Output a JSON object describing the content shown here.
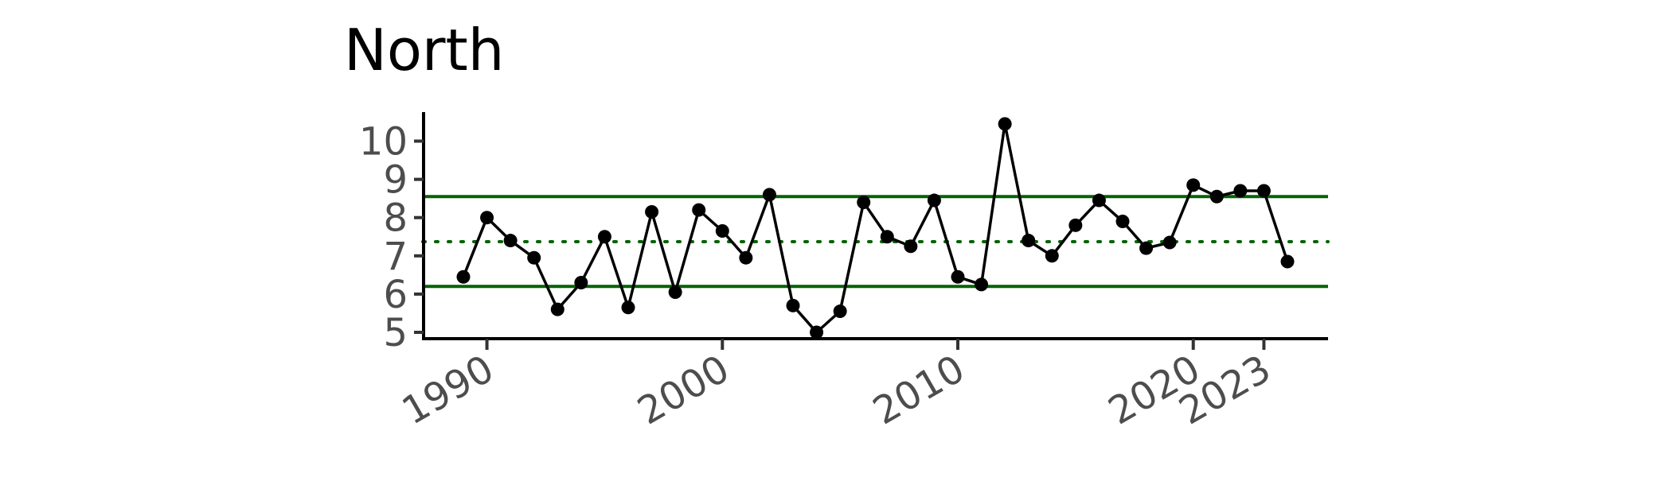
{
  "chart_data": {
    "type": "line",
    "title": "North",
    "xlabel": "",
    "ylabel": "",
    "x": [
      1989,
      1990,
      1991,
      1992,
      1993,
      1994,
      1995,
      1996,
      1997,
      1998,
      1999,
      2000,
      2001,
      2002,
      2003,
      2004,
      2005,
      2006,
      2007,
      2008,
      2009,
      2010,
      2011,
      2012,
      2013,
      2014,
      2015,
      2016,
      2017,
      2018,
      2019,
      2020,
      2021,
      2022,
      2023,
      2024
    ],
    "series": [
      {
        "values": [
          6.45,
          8.0,
          7.4,
          6.95,
          5.6,
          6.3,
          7.5,
          5.65,
          8.15,
          6.05,
          8.2,
          7.65,
          6.95,
          8.6,
          5.7,
          5.0,
          5.55,
          8.4,
          7.5,
          7.25,
          8.45,
          6.45,
          6.25,
          10.45,
          7.4,
          7.0,
          7.8,
          8.45,
          7.9,
          7.2,
          7.35,
          8.85,
          8.55,
          8.7,
          8.7,
          6.85
        ]
      }
    ],
    "reference_lines": {
      "center": 7.37,
      "upper": 8.55,
      "lower": 6.2
    },
    "xlim": [
      1989.0,
      2024.0
    ],
    "ylim": [
      5,
      10
    ],
    "x_ticks": [
      1990,
      2000,
      2010,
      2020,
      2023
    ],
    "y_ticks": [
      5,
      6,
      7,
      8,
      9,
      10
    ],
    "x_tick_labels": [
      "1990",
      "2000",
      "2010",
      "2020",
      "2023"
    ],
    "y_tick_labels": [
      "5",
      "6",
      "7",
      "8",
      "9",
      "10"
    ],
    "grid": false,
    "legend": "none",
    "colors": {
      "line": "#000000",
      "points": "#000000",
      "control_limits": "#006400",
      "center_line": "#006400",
      "axis": "#000000",
      "tick_labels": "#4d4d4d"
    }
  }
}
